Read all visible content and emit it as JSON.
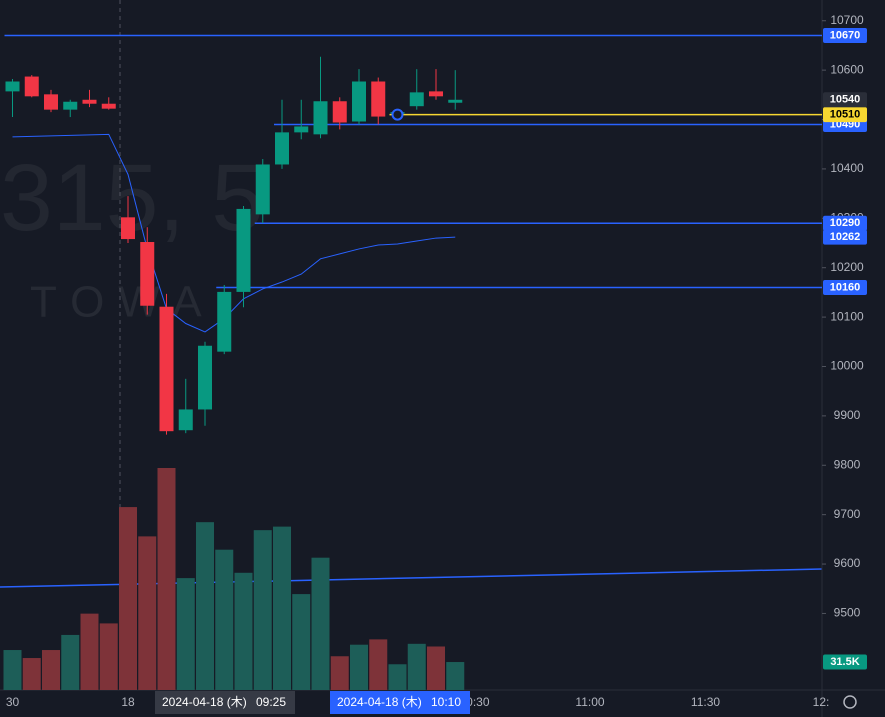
{
  "chart_data": {
    "type": "candlestick",
    "watermark": {
      "symbol": "315, 5",
      "name": "TOWA"
    },
    "categories": [
      "30",
      null,
      null,
      null,
      null,
      null,
      "18",
      null,
      null,
      null,
      null,
      null,
      null,
      null,
      null,
      null,
      null,
      null,
      null,
      null,
      null,
      null,
      null,
      null,
      "10:30",
      null,
      null,
      null,
      null,
      null,
      "11:00",
      null,
      null,
      null,
      null,
      null,
      "11:30",
      null,
      null,
      null,
      null,
      null,
      "12:"
    ],
    "open": [
      10557,
      10587,
      10551,
      10520,
      10540,
      10532,
      10302,
      10252,
      10121,
      9871,
      9913,
      10030,
      10151,
      10308,
      10409,
      10474,
      10470,
      10537,
      10496,
      10577,
      10512,
      10527,
      10557,
      10534,
      null,
      null,
      null,
      null,
      null,
      null,
      null,
      null,
      null,
      null,
      null,
      null,
      null,
      null,
      null,
      null,
      null,
      null,
      null
    ],
    "high": [
      10582,
      10590,
      10560,
      10540,
      10560,
      10545,
      10345,
      10282,
      10147,
      9975,
      10050,
      10165,
      10325,
      10420,
      10540,
      10540,
      10627,
      10545,
      10602,
      10585,
      10520,
      10602,
      10602,
      10600,
      null,
      null,
      null,
      null,
      null,
      null,
      null,
      null,
      null,
      null,
      null,
      null,
      null,
      null,
      null,
      null,
      null,
      null,
      null
    ],
    "low": [
      10505,
      10545,
      10515,
      10505,
      10525,
      10520,
      10250,
      10105,
      9862,
      9865,
      9880,
      10025,
      10120,
      10290,
      10400,
      10460,
      10462,
      10480,
      10490,
      10490,
      10505,
      10520,
      10540,
      10520,
      null,
      null,
      null,
      null,
      null,
      null,
      null,
      null,
      null,
      null,
      null,
      null,
      null,
      null,
      null,
      null,
      null,
      null,
      null
    ],
    "close": [
      10577,
      10547,
      10520,
      10536,
      10532,
      10522,
      10258,
      10123,
      9869,
      9913,
      10042,
      10151,
      10319,
      10409,
      10474,
      10486,
      10537,
      10494,
      10577,
      10506,
      10515,
      10555,
      10547,
      10540,
      null,
      null,
      null,
      null,
      null,
      null,
      null,
      null,
      null,
      null,
      null,
      null,
      null,
      null,
      null,
      null,
      null,
      null,
      null
    ],
    "volume": [
      45,
      36,
      45,
      62,
      86,
      75,
      206,
      173,
      250,
      126,
      189,
      158,
      132,
      180,
      184,
      108,
      149,
      38,
      51,
      57,
      29,
      52,
      49,
      31.5,
      null,
      null,
      null,
      null,
      null,
      null,
      null,
      null,
      null,
      null,
      null,
      null,
      null,
      null,
      null,
      null,
      null,
      null,
      null
    ],
    "volume_last_label": "31.5K",
    "ma": [
      10465,
      10466,
      10467,
      10468,
      10469,
      10470,
      10389,
      10238,
      10117,
      10087,
      10070,
      10097,
      10137,
      10157,
      10171,
      10187,
      10218,
      10228,
      10238,
      10246,
      10248,
      10254,
      10260,
      10262,
      null,
      null,
      null,
      null,
      null,
      null,
      null,
      null,
      null,
      null,
      null,
      null,
      null,
      null,
      null,
      null,
      null,
      null,
      null
    ],
    "levels": [
      {
        "value": 10670,
        "color": "#2962ff",
        "from": 0
      },
      {
        "value": 10490,
        "color": "#2962ff",
        "from": 14
      },
      {
        "value": 10290,
        "color": "#2962ff",
        "from": 13
      },
      {
        "value": 10160,
        "color": "#2962ff",
        "from": 11
      },
      {
        "value": 10510,
        "color": "#f7d731",
        "from": 20
      }
    ],
    "crosshair": [
      {
        "date": "2024-04-18 (木)",
        "time": "09:25"
      },
      {
        "date": "2024-04-18 (木)",
        "time": "10:10"
      }
    ],
    "ylim": [
      9345,
      10742
    ],
    "yticks": [
      10700,
      10600,
      10500,
      10400,
      10300,
      10200,
      10100,
      10000,
      9900,
      9800,
      9700,
      9600,
      9500
    ],
    "vlim": [
      0,
      250
    ],
    "up_color": "#089981",
    "down_color": "#f23645",
    "volume_up_color": "#1d5e58",
    "volume_down_color": "#7e3339",
    "ma_color": "#2962ff"
  }
}
